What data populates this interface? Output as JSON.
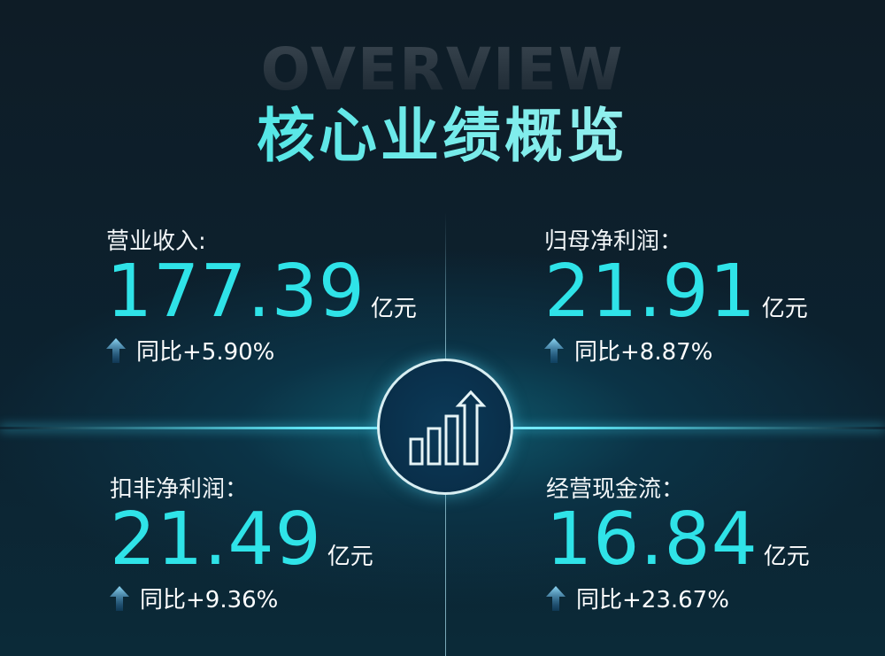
{
  "header": {
    "watermark": "OVERVIEW",
    "title": "核心业绩概览"
  },
  "center_icon": "bar-chart-growth-icon",
  "colors": {
    "accent": "#2fe3e8",
    "background": "#0c2230"
  },
  "metrics": [
    {
      "label": "营业收入:",
      "value": "177.39",
      "unit": "亿元",
      "growth": "同比+5.90%",
      "trend": "up"
    },
    {
      "label": "归母净利润：",
      "value": "21.91",
      "unit": "亿元",
      "growth": "同比+8.87%",
      "trend": "up"
    },
    {
      "label": "扣非净利润：",
      "value": "21.49",
      "unit": "亿元",
      "growth": "同比+9.36%",
      "trend": "up"
    },
    {
      "label": "经营现金流：",
      "value": "16.84",
      "unit": "亿元",
      "growth": "同比+23.67%",
      "trend": "up"
    }
  ]
}
